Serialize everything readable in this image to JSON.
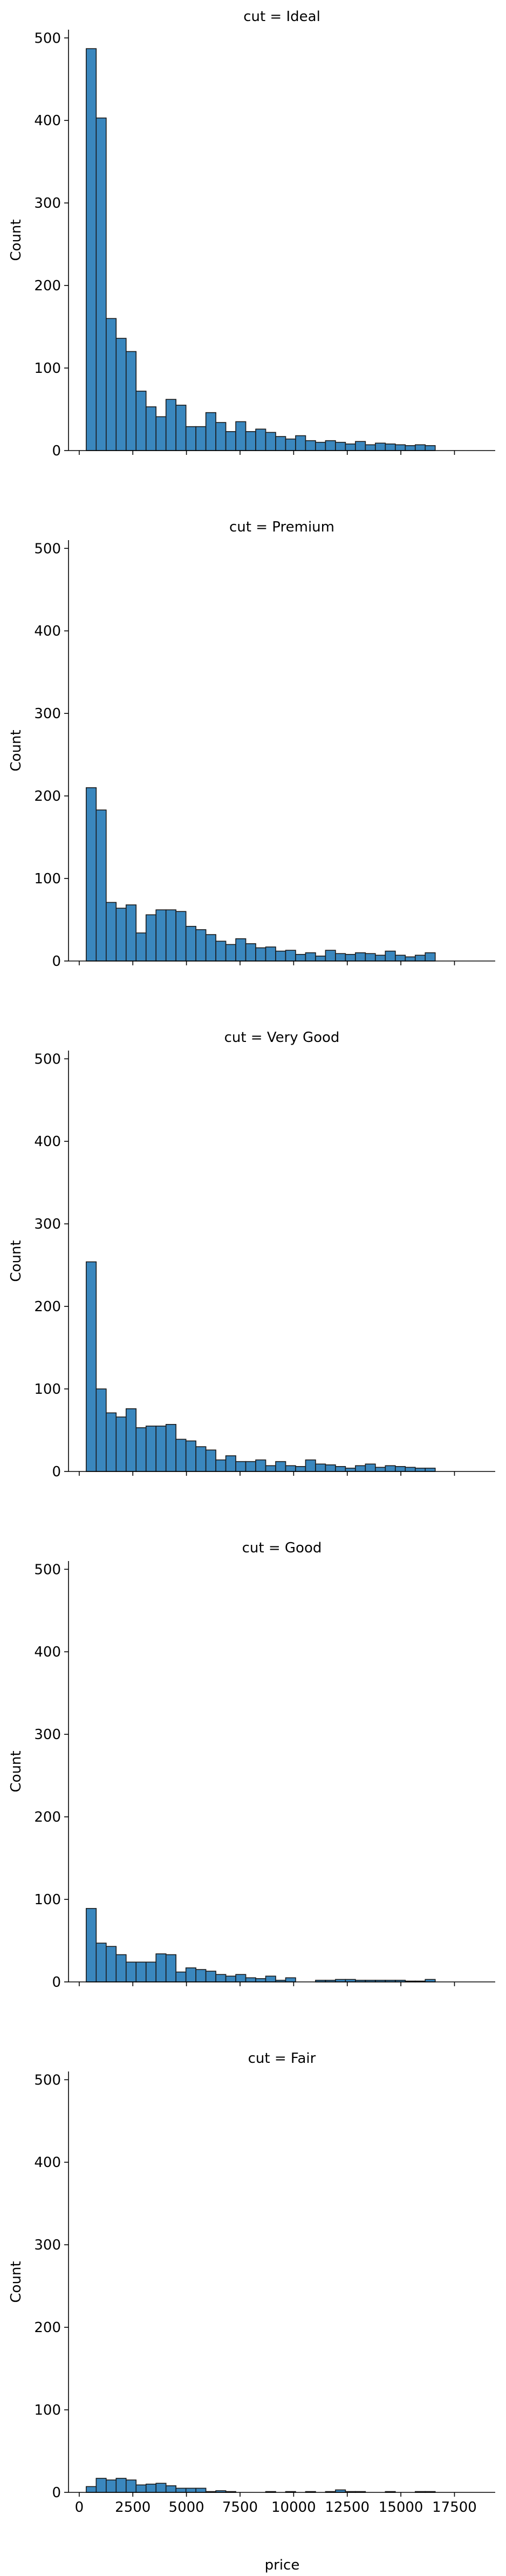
{
  "chart_data": {
    "type": "bar",
    "layout": "faceted histograms, single column, shared x and y axes",
    "xlabel": "price",
    "ylabel": "Count",
    "xlim": [
      -500,
      19400
    ],
    "ylim": [
      0,
      510
    ],
    "xticks": [
      0,
      2500,
      5000,
      7500,
      10000,
      12500,
      15000,
      17500
    ],
    "yticks": [
      0,
      100,
      200,
      300,
      400,
      500
    ],
    "bin_start": 326,
    "bin_width": 465,
    "bar_color": "#3A87BE",
    "edge_color": "#1A1A1A",
    "grid": false,
    "facets": [
      {
        "title": "cut = Ideal",
        "values": [
          487,
          403,
          160,
          136,
          120,
          72,
          53,
          41,
          62,
          55,
          29,
          29,
          46,
          34,
          23,
          35,
          23,
          26,
          22,
          17,
          14,
          18,
          12,
          10,
          12,
          10,
          8,
          11,
          7,
          9,
          8,
          7,
          6,
          7,
          6
        ]
      },
      {
        "title": "cut = Premium",
        "values": [
          210,
          183,
          71,
          64,
          68,
          34,
          56,
          62,
          62,
          60,
          42,
          38,
          32,
          24,
          20,
          27,
          21,
          16,
          17,
          12,
          13,
          8,
          10,
          6,
          13,
          9,
          8,
          10,
          9,
          7,
          12,
          7,
          5,
          7,
          10
        ]
      },
      {
        "title": "cut = Very Good",
        "values": [
          254,
          100,
          71,
          66,
          76,
          53,
          55,
          55,
          57,
          39,
          37,
          30,
          26,
          14,
          19,
          12,
          12,
          14,
          7,
          12,
          7,
          6,
          14,
          9,
          8,
          6,
          4,
          7,
          9,
          5,
          7,
          6,
          5,
          4,
          4
        ]
      },
      {
        "title": "cut = Good",
        "values": [
          89,
          47,
          43,
          33,
          24,
          24,
          24,
          34,
          33,
          12,
          17,
          15,
          13,
          9,
          7,
          9,
          5,
          4,
          7,
          2,
          5,
          0,
          0,
          2,
          2,
          3,
          3,
          2,
          2,
          2,
          2,
          2,
          1,
          1,
          3
        ]
      },
      {
        "title": "cut = Fair",
        "values": [
          7,
          17,
          15,
          17,
          15,
          9,
          10,
          11,
          8,
          5,
          5,
          5,
          1,
          2,
          1,
          0,
          0,
          0,
          1,
          0,
          1,
          0,
          1,
          0,
          1,
          3,
          1,
          1,
          0,
          0,
          1,
          0,
          0,
          1,
          1
        ]
      }
    ]
  }
}
